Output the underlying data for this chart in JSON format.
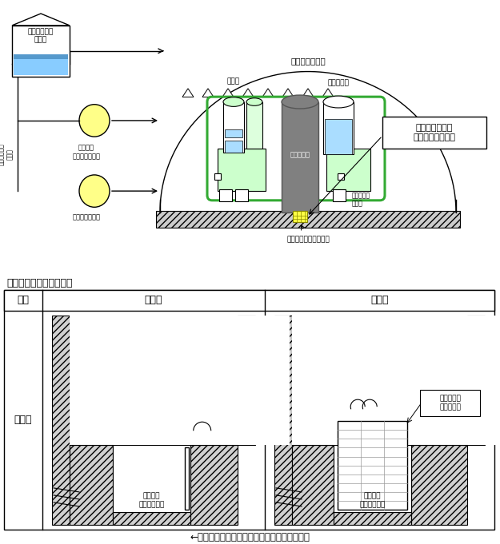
{
  "bg_color": "#ffffff",
  "section_label_text": "スクリーン取替前後比較",
  "table_headers": [
    "項目",
    "取替前",
    "取替後"
  ],
  "row_label": "概念図",
  "legend_text": "←：格納容器再循環サンプへ流入する水の流れ",
  "before_screen_label": "スクリーン",
  "before_sump_label": "格納容器\n再循環サンプ",
  "after_screen_label": "スクリーン\n面積の拡大",
  "after_sump_label": "格納容器\n再循環サンプ",
  "top_diagram_label": "原子炉格納容器",
  "fuel_tank_label": "燃料取替用水\nタンク",
  "spray_pump_label": "格納容器\nスプレイポンプ",
  "residual_pump_label": "余熱除去ポンプ",
  "eccs_label": "非常用炉心冷\n却系統",
  "pressurizer_label": "加圧器",
  "reactor_vessel_label": "原子炉容器",
  "steam_gen_label": "蒸気発生器",
  "coolant_pump_label": "１次冷却材\nポンプ",
  "sump_label": "格納容器再循環サンプ",
  "screen_callout": "格納容器再循環\nサンプスクリーン"
}
